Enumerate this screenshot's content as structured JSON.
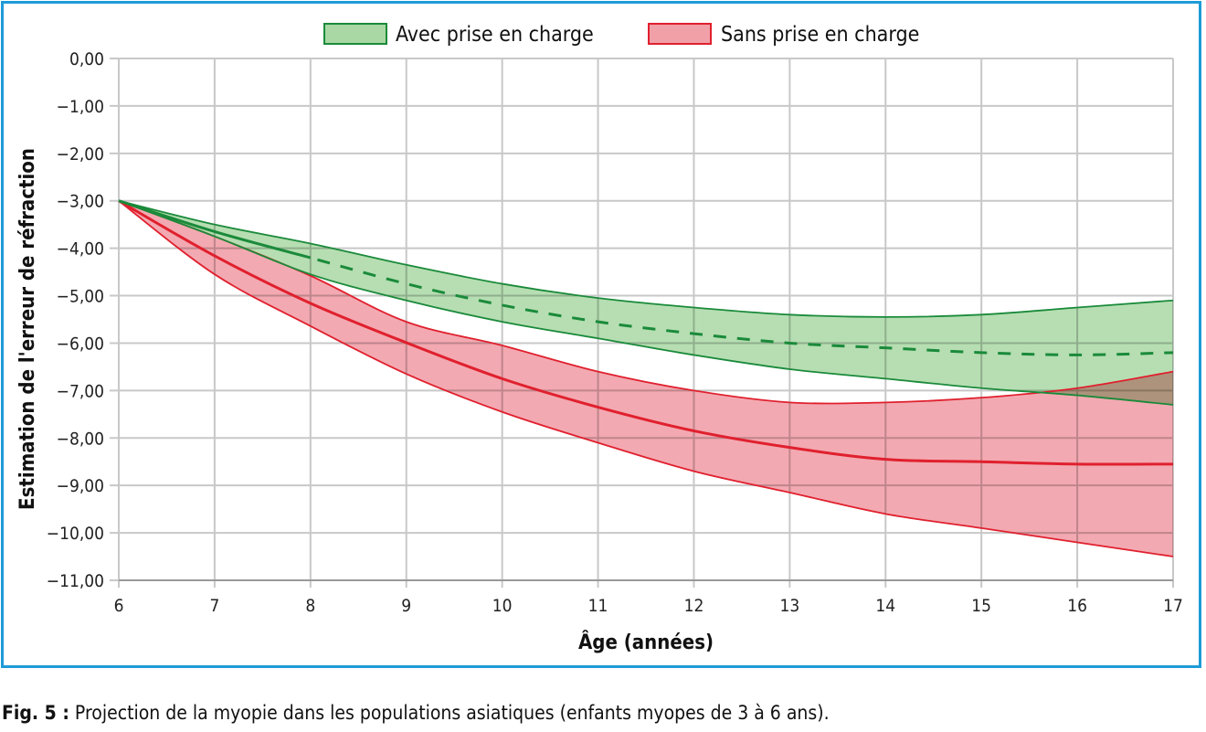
{
  "chart_data": {
    "type": "area",
    "title": "",
    "xlabel": "Âge (années)",
    "ylabel": "Estimation de l'erreur de réfraction",
    "xlim": [
      6,
      17
    ],
    "ylim": [
      -11,
      0
    ],
    "grid": true,
    "legend_placement": "top-center",
    "x_ticks": [
      "6",
      "7",
      "8",
      "9",
      "10",
      "11",
      "12",
      "13",
      "14",
      "15",
      "16",
      "17"
    ],
    "y_ticks": [
      "0,00",
      "−1,00",
      "−2,00",
      "−3,00",
      "−4,00",
      "−5,00",
      "−6,00",
      "−7,00",
      "−8,00",
      "−9,00",
      "−10,00",
      "−11,00"
    ],
    "x": [
      6,
      7,
      8,
      9,
      10,
      11,
      12,
      13,
      14,
      15,
      16,
      17
    ],
    "series": [
      {
        "name": "Avec prise en charge",
        "color": "#1a8a3a",
        "fill": "#a9d8a4",
        "upper": [
          -3,
          -3.5,
          -3.9,
          -4.35,
          -4.75,
          -5.05,
          -5.25,
          -5.4,
          -5.45,
          -5.4,
          -5.25,
          -5.1
        ],
        "mean": [
          -3,
          -3.65,
          -4.2,
          -4.75,
          -5.2,
          -5.55,
          -5.8,
          -6.0,
          -6.1,
          -6.2,
          -6.25,
          -6.2
        ],
        "lower": [
          -3,
          -3.75,
          -4.55,
          -5.1,
          -5.55,
          -5.9,
          -6.25,
          -6.55,
          -6.75,
          -6.95,
          -7.1,
          -7.3
        ],
        "mean_dashed_after": 8
      },
      {
        "name": "Sans prise en charge",
        "color": "#e0202e",
        "fill": "#f2a0a8",
        "upper": [
          -3,
          -3.75,
          -4.58,
          -5.55,
          -6.05,
          -6.6,
          -7.0,
          -7.25,
          -7.25,
          -7.15,
          -6.95,
          -6.6
        ],
        "mean": [
          -3,
          -4.16,
          -5.16,
          -5.99,
          -6.75,
          -7.35,
          -7.85,
          -8.2,
          -8.45,
          -8.5,
          -8.55,
          -8.55
        ],
        "lower": [
          -3,
          -4.55,
          -5.64,
          -6.65,
          -7.45,
          -8.1,
          -8.7,
          -9.15,
          -9.6,
          -9.9,
          -10.2,
          -10.5
        ]
      }
    ]
  },
  "caption": {
    "label": "Fig. 5 :",
    "text": " Projection de la myopie dans les populations asiatiques (enfants myopes de 3 à 6 ans)."
  }
}
